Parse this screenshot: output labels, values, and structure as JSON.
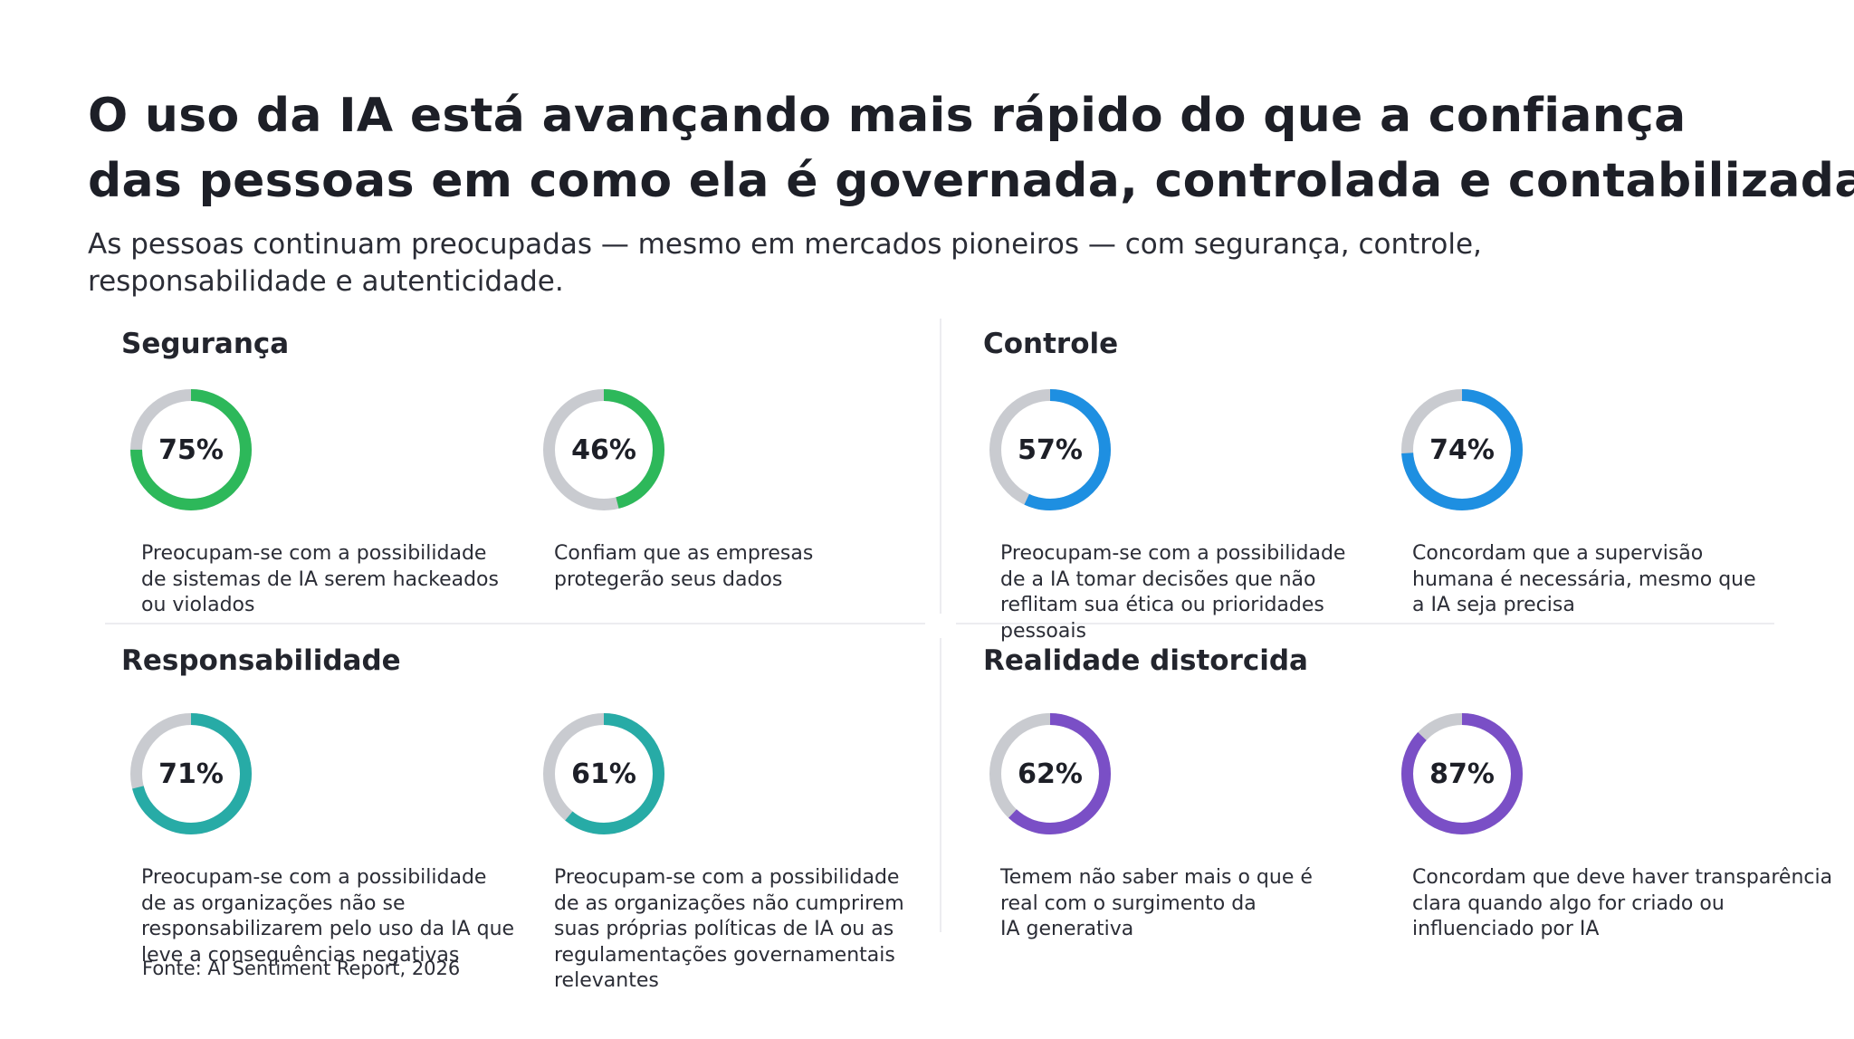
{
  "title_lines": [
    "O uso da IA está avançando mais rápido do que a confiança",
    "das pessoas em como ela é governada, controlada e contabilizada"
  ],
  "subtitle_lines": [
    "As pessoas continuam preocupadas — mesmo em mercados pioneiros — com segurança, controle,",
    "responsabilidade e autenticidade."
  ],
  "colors": {
    "track": "#c9cbd0",
    "seguranca": "#2db85a",
    "controle": "#1e8fe1",
    "responsabilidade": "#27aba6",
    "realidade": "#7a4fc6"
  },
  "source": "Fonte: AI Sentiment Report, 2026",
  "chart_data": [
    {
      "type": "pie",
      "title": "Segurança",
      "items": [
        {
          "value": 75,
          "label": "75%",
          "color": "#2db85a",
          "desc_lines": [
            "Preocupam-se com a possibilidade",
            "de sistemas de IA serem hackeados",
            "ou violados"
          ]
        },
        {
          "value": 46,
          "label": "46%",
          "color": "#2db85a",
          "desc_lines": [
            "Confiam que as empresas",
            "protegerão seus dados"
          ]
        }
      ]
    },
    {
      "type": "pie",
      "title": "Controle",
      "items": [
        {
          "value": 57,
          "label": "57%",
          "color": "#1e8fe1",
          "desc_lines": [
            "Preocupam-se com a possibilidade",
            "de a IA tomar decisões que não",
            "reflitam sua ética ou prioridades",
            "pessoais"
          ]
        },
        {
          "value": 74,
          "label": "74%",
          "color": "#1e8fe1",
          "desc_lines": [
            "Concordam que a supervisão",
            "humana é necessária, mesmo que",
            "a IA seja precisa"
          ]
        }
      ]
    },
    {
      "type": "pie",
      "title": "Responsabilidade",
      "items": [
        {
          "value": 71,
          "label": "71%",
          "color": "#27aba6",
          "desc_lines": [
            "Preocupam-se com a possibilidade",
            "de as organizações não se",
            "responsabilizarem pelo uso da IA que",
            "leve a consequências negativas"
          ]
        },
        {
          "value": 61,
          "label": "61%",
          "color": "#27aba6",
          "desc_lines": [
            "Preocupam-se com a possibilidade",
            "de as organizações não cumprirem",
            "suas próprias políticas de IA ou as",
            "regulamentações governamentais",
            "relevantes"
          ]
        }
      ]
    },
    {
      "type": "pie",
      "title": "Realidade distorcida",
      "items": [
        {
          "value": 62,
          "label": "62%",
          "color": "#7a4fc6",
          "desc_lines": [
            "Temem não saber mais o que é",
            "real com o surgimento da",
            "IA generativa"
          ]
        },
        {
          "value": 87,
          "label": "87%",
          "color": "#7a4fc6",
          "desc_lines": [
            "Concordam que deve haver transparência",
            "clara quando algo for criado ou",
            "influenciado por IA"
          ]
        }
      ]
    }
  ]
}
